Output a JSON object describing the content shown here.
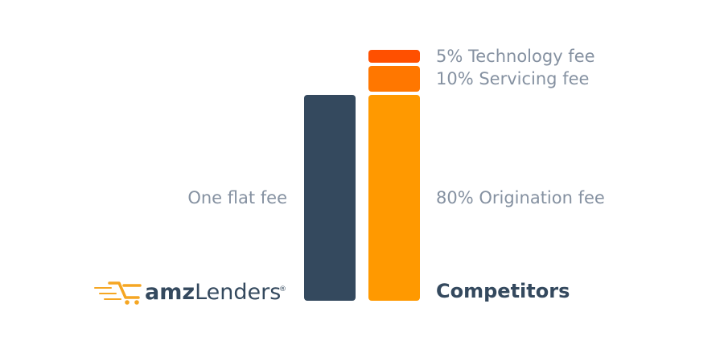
{
  "chart_data": {
    "type": "bar",
    "stacked": true,
    "categories": [
      "amzLenders",
      "Competitors"
    ],
    "bars": [
      {
        "category": "amzLenders",
        "label_side": "left",
        "segments": [
          {
            "label": "One flat fee",
            "value": 80,
            "color": "#34495e"
          }
        ]
      },
      {
        "category": "Competitors",
        "label_side": "right",
        "segments": [
          {
            "label": "80% Origination fee",
            "value": 80,
            "color": "#ff9900"
          },
          {
            "label": "10% Servicing fee",
            "value": 10,
            "color": "#ff7700"
          },
          {
            "label": "5% Technology fee",
            "value": 5,
            "color": "#ff5000"
          }
        ]
      }
    ],
    "ylim": [
      0,
      100
    ],
    "grid": false,
    "legend": "none"
  },
  "brand": {
    "name_bold": "amz",
    "name_rest": "Lenders",
    "registered": "®",
    "accent_color": "#f5a623"
  },
  "competitors_label": "Competitors"
}
